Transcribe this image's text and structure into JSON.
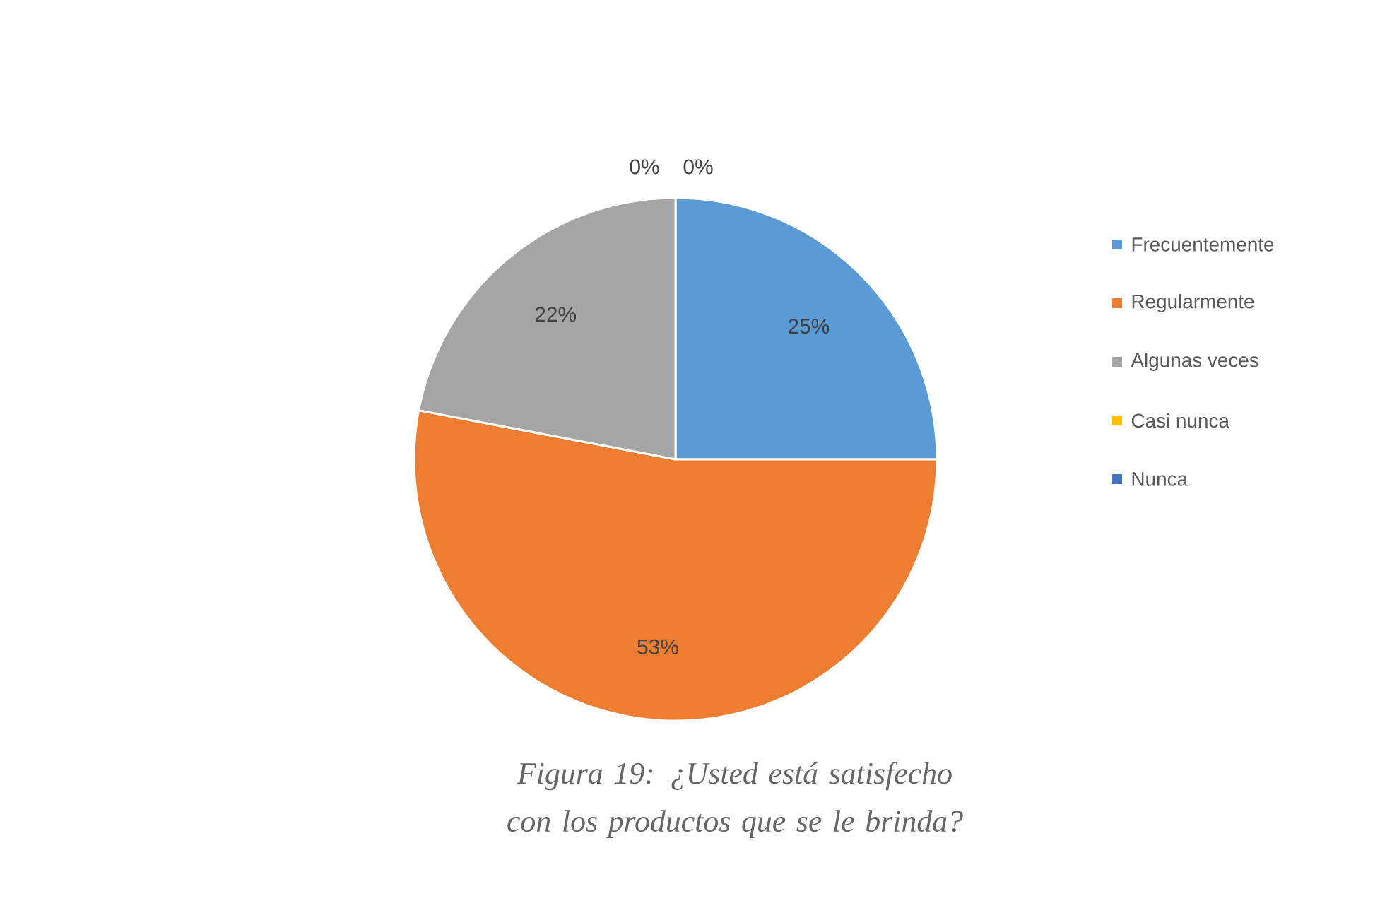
{
  "chart_data": {
    "type": "pie",
    "categories": [
      "Frecuentemente",
      "Regularmente",
      "Algunas veces",
      "Casi nunca",
      "Nunca"
    ],
    "values": [
      25,
      53,
      22,
      0,
      0
    ],
    "value_labels": [
      "25%",
      "53%",
      "22%",
      "0%",
      "0%"
    ],
    "colors": [
      "#5b9bd5",
      "#ed7d31",
      "#a5a5a5",
      "#ffc000",
      "#4472c4"
    ],
    "legend": "right",
    "annotations": [
      "Figura 19: ¿Usted está satisfecho con los productos que se le brinda?"
    ]
  }
}
